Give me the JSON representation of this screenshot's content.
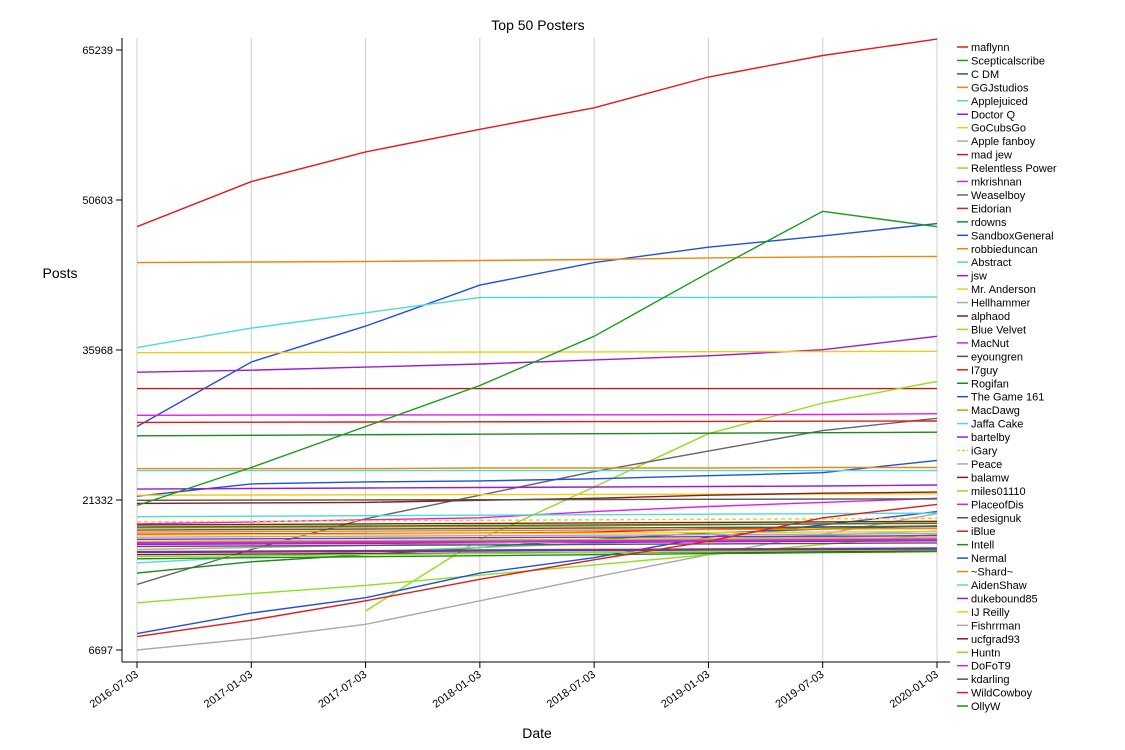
{
  "chart_data": {
    "type": "line",
    "title": "Top 50 Posters",
    "xlabel": "Date",
    "ylabel": "Posts",
    "x": [
      "2016-07-03",
      "2017-01-03",
      "2017-07-03",
      "2018-01-03",
      "2018-07-03",
      "2019-01-03",
      "2019-07-03",
      "2020-01-03"
    ],
    "y_ticks": [
      "6697",
      "21332",
      "35968",
      "50603",
      "65239"
    ],
    "ylim": [
      6697,
      65239
    ],
    "grid": "vertical",
    "legend": "right",
    "series": [
      {
        "name": "maflynn",
        "color": "#e31a1c",
        "dash": false,
        "values": [
          48000,
          52400,
          55300,
          57500,
          59600,
          62600,
          64700,
          66300
        ]
      },
      {
        "name": "Scepticalscribe",
        "color": "#1a9a1a",
        "dash": false,
        "values": [
          null,
          null,
          null,
          null,
          null,
          null,
          null,
          null
        ]
      },
      {
        "name": "C DM",
        "color": "#1f4fe0",
        "dash": false,
        "values": [
          28500,
          34800,
          38300,
          42300,
          44500,
          46000,
          47100,
          48300
        ]
      },
      {
        "name": "GGJstudios",
        "color": "#f0860f",
        "dash": false,
        "values": [
          44500,
          44550,
          44600,
          44700,
          44800,
          44950,
          45050,
          45100
        ]
      },
      {
        "name": "Applejuiced",
        "color": "#4fd9d9",
        "dash": false,
        "values": [
          36200,
          38100,
          39600,
          41100,
          41100,
          41100,
          41100,
          41150
        ]
      },
      {
        "name": "Doctor Q",
        "color": "#9b1ad6",
        "dash": false,
        "values": [
          33800,
          34000,
          34300,
          34600,
          35000,
          35400,
          36000,
          37300
        ]
      },
      {
        "name": "GoCubsGo",
        "color": "#f2cc14",
        "dash": false,
        "values": [
          35700,
          35720,
          35740,
          35760,
          35780,
          35800,
          35820,
          35840
        ]
      },
      {
        "name": "Apple fanboy",
        "color": "#aaaaaa",
        "dash": false,
        "values": [
          null,
          null,
          null,
          null,
          null,
          null,
          null,
          null
        ]
      },
      {
        "name": "mad jew",
        "color": "#b81c1c",
        "dash": false,
        "values": [
          32200,
          32200,
          32200,
          32200,
          32200,
          32200,
          32200,
          32200
        ]
      },
      {
        "name": "Relentless Power",
        "color": "#8fe01a",
        "dash": false,
        "values": [
          null,
          null,
          10500,
          17500,
          22600,
          27800,
          30800,
          32900
        ]
      },
      {
        "name": "mkrishnan",
        "color": "#e61ae6",
        "dash": false,
        "values": [
          29600,
          29620,
          29630,
          29640,
          29650,
          29660,
          29670,
          29750
        ]
      },
      {
        "name": "Weaselboy",
        "color": "#666666",
        "dash": false,
        "values": [
          13100,
          16500,
          19500,
          21800,
          24100,
          26100,
          28100,
          29300
        ]
      },
      {
        "name": "Eidorian",
        "color": "#e31a1c",
        "dash": false,
        "values": [
          28900,
          28920,
          28940,
          28960,
          28980,
          29000,
          29020,
          29040
        ]
      },
      {
        "name": "rdowns",
        "color": "#1a8a1a",
        "dash": false,
        "values": [
          27600,
          27650,
          27700,
          27750,
          27800,
          27850,
          27900,
          27950
        ]
      },
      {
        "name": "SandboxGeneral",
        "color": "#1f4fe0",
        "dash": false,
        "values": [
          21700,
          22900,
          23100,
          23200,
          23400,
          23700,
          24000,
          25200
        ]
      },
      {
        "name": "robbieduncan",
        "color": "#f0860f",
        "dash": false,
        "values": [
          24400,
          24400,
          24400,
          24450,
          24450,
          24450,
          24500,
          24500
        ]
      },
      {
        "name": "Abstract",
        "color": "#4fd9d9",
        "dash": false,
        "values": [
          24200,
          24200,
          24200,
          24200,
          24200,
          24200,
          24200,
          24200
        ]
      },
      {
        "name": "jsw",
        "color": "#9b1ad6",
        "dash": false,
        "values": [
          22400,
          22450,
          22500,
          22550,
          22600,
          22650,
          22700,
          22800
        ]
      },
      {
        "name": "Mr. Anderson",
        "color": "#f2cc14",
        "dash": false,
        "values": [
          21800,
          21820,
          21840,
          21860,
          21880,
          21900,
          21920,
          21940
        ]
      },
      {
        "name": "Hellhammer",
        "color": "#aaaaaa",
        "dash": false,
        "values": [
          6697,
          7800,
          9200,
          11500,
          13800,
          16000,
          18000,
          20000
        ]
      },
      {
        "name": "alphaod",
        "color": "#8b1a1a",
        "dash": false,
        "values": [
          21000,
          21050,
          21100,
          21300,
          21500,
          21800,
          22000,
          22100
        ]
      },
      {
        "name": "Blue Velvet",
        "color": "#8fe01a",
        "dash": false,
        "values": [
          11300,
          12200,
          13000,
          14000,
          15000,
          16000,
          17000,
          18000
        ]
      },
      {
        "name": "MacNut",
        "color": "#e61ae6",
        "dash": false,
        "values": [
          19000,
          19200,
          19400,
          19600,
          20200,
          20700,
          21100,
          21500
        ]
      },
      {
        "name": "eyoungren",
        "color": "#555555",
        "dash": false,
        "values": [
          21300,
          21320,
          21340,
          21360,
          21380,
          21400,
          21420,
          21440
        ]
      },
      {
        "name": "I7guy",
        "color": "#e31a1c",
        "dash": false,
        "values": [
          18000,
          18030,
          18060,
          18090,
          18200,
          18500,
          18700,
          18800
        ]
      },
      {
        "name": "Rogifan",
        "color": "#1a8a1a",
        "dash": false,
        "values": [
          14200,
          15300,
          16000,
          16700,
          17500,
          18100,
          18500,
          18800
        ]
      },
      {
        "name": "The Game 161",
        "color": "#1f4fe0",
        "dash": false,
        "values": [
          8300,
          10300,
          11800,
          14200,
          15700,
          17700,
          18900,
          20200
        ]
      },
      {
        "name": "MacDawg",
        "color": "#f0860f",
        "dash": false,
        "values": [
          18600,
          18650,
          18700,
          18750,
          18800,
          18900,
          19000,
          19100
        ]
      },
      {
        "name": "Jaffa Cake",
        "color": "#4fd9d9",
        "dash": false,
        "values": [
          15200,
          15800,
          16300,
          16700,
          17100,
          17500,
          17900,
          18300
        ]
      },
      {
        "name": "bartelby",
        "color": "#9b1ad6",
        "dash": false,
        "values": [
          17000,
          17050,
          17100,
          17150,
          17200,
          17250,
          17300,
          17350
        ]
      },
      {
        "name": "iGary",
        "color": "#f2cc14",
        "dash": true,
        "values": [
          19200,
          19250,
          19300,
          19350,
          19400,
          19450,
          19500,
          19550
        ]
      },
      {
        "name": "Peace",
        "color": "#aaaaaa",
        "dash": false,
        "values": [
          16500,
          16700,
          16900,
          17100,
          17300,
          17500,
          17700,
          17900
        ]
      },
      {
        "name": "balamw",
        "color": "#8b1a1a",
        "dash": false,
        "values": [
          16000,
          16050,
          16100,
          16150,
          16200,
          16250,
          16300,
          16350
        ]
      },
      {
        "name": "miles01110",
        "color": "#8fe01a",
        "dash": false,
        "values": [
          15800,
          15900,
          16000,
          16100,
          16200,
          16300,
          16400,
          16500
        ]
      },
      {
        "name": "PlaceofDis",
        "color": "#e61ae6",
        "dash": false,
        "values": [
          17200,
          17250,
          17300,
          17350,
          17400,
          17450,
          17500,
          17550
        ]
      },
      {
        "name": "edesignuk",
        "color": "#555555",
        "dash": false,
        "values": [
          16800,
          16850,
          16900,
          16950,
          17000,
          17050,
          17100,
          17150
        ]
      },
      {
        "name": "iBlue",
        "color": "#e31a1c",
        "dash": false,
        "values": [
          16300,
          16350,
          16400,
          16450,
          16500,
          16550,
          16600,
          16650
        ]
      },
      {
        "name": "Intell",
        "color": "#1a8a1a",
        "dash": false,
        "values": [
          15600,
          15700,
          15800,
          15900,
          16000,
          16100,
          16200,
          16300
        ]
      },
      {
        "name": "Nermal",
        "color": "#1f4fe0",
        "dash": false,
        "values": [
          16200,
          16250,
          16300,
          16350,
          16400,
          16450,
          16500,
          16550
        ]
      },
      {
        "name": "~Shard~",
        "color": "#f0860f",
        "dash": false,
        "values": [
          18200,
          18250,
          18300,
          18350,
          18400,
          18450,
          18500,
          18550
        ]
      },
      {
        "name": "AidenShaw",
        "color": "#4fd9d9",
        "dash": false,
        "values": [
          19700,
          19750,
          19800,
          19850,
          19900,
          19950,
          20000,
          20050
        ]
      },
      {
        "name": "dukebound85",
        "color": "#9b1ad6",
        "dash": false,
        "values": [
          17500,
          17550,
          17600,
          17650,
          17700,
          17750,
          17800,
          17850
        ]
      },
      {
        "name": "IJ Reilly",
        "color": "#f2cc14",
        "dash": false,
        "values": [
          17900,
          17950,
          18000,
          18050,
          18100,
          18150,
          18200,
          18250
        ]
      },
      {
        "name": "Fishrrman",
        "color": "#aaaaaa",
        "dash": false,
        "values": [
          17700,
          17750,
          17800,
          17850,
          17900,
          17950,
          18000,
          18050
        ]
      },
      {
        "name": "ucfgrad93",
        "color": "#8b1a1a",
        "dash": false,
        "values": [
          18900,
          18950,
          19000,
          19050,
          19100,
          19150,
          19200,
          19250
        ]
      },
      {
        "name": "Huntn",
        "color": "#8fe01a",
        "dash": false,
        "values": [
          17300,
          17350,
          17400,
          17450,
          17500,
          17550,
          17600,
          17650
        ]
      },
      {
        "name": "DoFoT9",
        "color": "#e61ae6",
        "dash": false,
        "values": [
          17100,
          17150,
          17200,
          17250,
          17300,
          17350,
          17400,
          17450
        ]
      },
      {
        "name": "kdarling",
        "color": "#555555",
        "dash": false,
        "values": [
          18400,
          18450,
          18500,
          18550,
          18600,
          18650,
          18700,
          18750
        ]
      },
      {
        "name": "WildCowboy",
        "color": "#e31a1c",
        "dash": false,
        "values": [
          8000,
          9600,
          11500,
          13600,
          15500,
          17300,
          19600,
          20900
        ]
      },
      {
        "name": "OllyW",
        "color": "#1a8a1a",
        "dash": false,
        "values": [
          18700,
          18750,
          18800,
          18850,
          18900,
          18950,
          19000,
          19050
        ]
      }
    ],
    "extra_line": {
      "name": "Scepticalscribe",
      "values": [
        20800,
        24500,
        28500,
        32500,
        37300,
        43500,
        49500,
        48000
      ]
    }
  }
}
